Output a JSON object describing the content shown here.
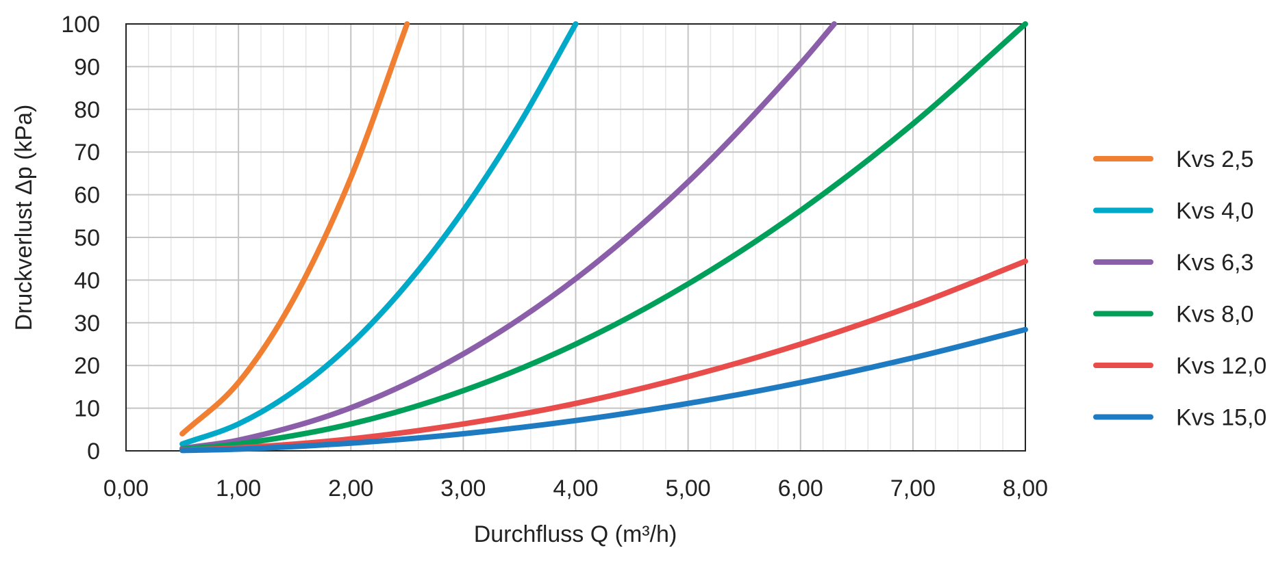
{
  "chart_data": {
    "type": "line",
    "title": "",
    "xlabel": "Durchfluss Q (m³/h)",
    "ylabel": "Druckverlust Δp (kPa)",
    "xlim": [
      0,
      8
    ],
    "ylim": [
      0,
      100
    ],
    "x_ticks": [
      "0,00",
      "1,00",
      "2,00",
      "3,00",
      "4,00",
      "5,00",
      "6,00",
      "7,00",
      "8,00"
    ],
    "y_ticks": [
      "0",
      "10",
      "20",
      "30",
      "40",
      "50",
      "60",
      "70",
      "80",
      "90",
      "100"
    ],
    "grid": true,
    "legend_position": "right",
    "series": [
      {
        "name": "Kvs 2,5",
        "color": "#f07f32",
        "x": [
          0.5,
          1.0,
          1.5,
          2.0,
          2.5
        ],
        "y": [
          4,
          16,
          36,
          64,
          100
        ]
      },
      {
        "name": "Kvs 4,0",
        "color": "#00a9c8",
        "x": [
          0.5,
          1.0,
          1.5,
          2.0,
          2.5,
          3.0,
          3.5,
          4.0
        ],
        "y": [
          1.6,
          6.3,
          14.1,
          25,
          39.1,
          56.3,
          76.6,
          100
        ]
      },
      {
        "name": "Kvs 6,3",
        "color": "#8a5ea8",
        "x": [
          0.5,
          1.0,
          2.0,
          3.0,
          4.0,
          5.0,
          6.0,
          6.3
        ],
        "y": [
          0.6,
          2.5,
          10.1,
          22.7,
          40.3,
          63,
          90.7,
          100
        ]
      },
      {
        "name": "Kvs 8,0",
        "color": "#00a05a",
        "x": [
          0.5,
          1.0,
          2.0,
          3.0,
          4.0,
          5.0,
          6.0,
          7.0,
          8.0
        ],
        "y": [
          0.4,
          1.6,
          6.3,
          14.1,
          25,
          39.1,
          56.3,
          76.6,
          100
        ]
      },
      {
        "name": "Kvs 12,0",
        "color": "#e84c4b",
        "x": [
          0.5,
          1.0,
          2.0,
          3.0,
          4.0,
          5.0,
          6.0,
          7.0,
          8.0
        ],
        "y": [
          0.2,
          0.7,
          2.8,
          6.3,
          11.1,
          17.4,
          25,
          34,
          44.4
        ]
      },
      {
        "name": "Kvs 15,0",
        "color": "#1e7bc2",
        "x": [
          0.5,
          1.0,
          2.0,
          3.0,
          4.0,
          5.0,
          6.0,
          7.0,
          8.0
        ],
        "y": [
          0.1,
          0.4,
          1.8,
          4,
          7.1,
          11.1,
          16,
          21.8,
          28.4
        ]
      }
    ]
  }
}
